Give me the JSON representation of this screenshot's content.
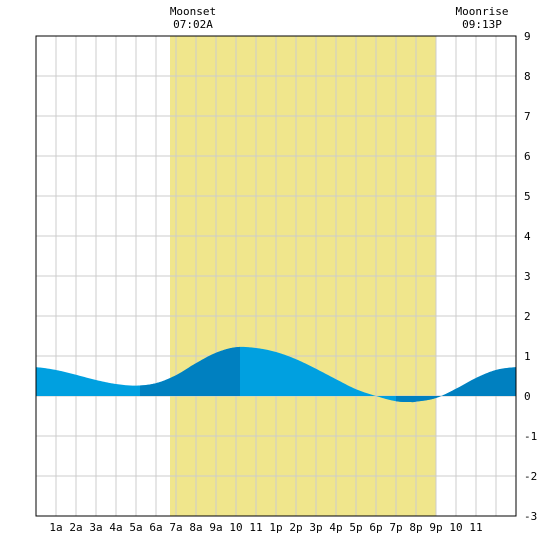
{
  "header": {
    "moonset_label": "Moonset",
    "moonset_time": "07:02A",
    "moonrise_label": "Moonrise",
    "moonrise_time": "09:13P"
  },
  "chart_data": {
    "type": "area",
    "title": "",
    "xlabel": "",
    "ylabel": "",
    "x_tick_labels": [
      "1a",
      "2a",
      "3a",
      "4a",
      "5a",
      "6a",
      "7a",
      "8a",
      "9a",
      "10",
      "11",
      "1p",
      "2p",
      "3p",
      "4p",
      "5p",
      "6p",
      "7p",
      "8p",
      "9p",
      "10",
      "11"
    ],
    "xlim": [
      0,
      24
    ],
    "ylim": [
      -3,
      9
    ],
    "y_ticks": [
      9,
      8,
      7,
      6,
      5,
      4,
      3,
      2,
      1,
      0,
      -1,
      -2,
      -3
    ],
    "daylight_band": {
      "start_hour": 6.7,
      "end_hour": 20.0
    },
    "grid": true,
    "colors": {
      "water": "#00a0e0",
      "water_dark": "#0080c0",
      "daylight": "#f0e68c",
      "grid": "#cccccc",
      "frame": "#000000"
    },
    "series": [
      {
        "x": [
          0,
          1,
          2,
          3,
          4,
          5,
          6,
          7,
          8,
          9,
          10,
          11,
          12,
          13,
          14,
          15,
          16,
          17,
          18,
          18.7,
          19,
          20,
          21,
          22,
          23,
          24
        ],
        "values": [
          0.72,
          0.65,
          0.53,
          0.4,
          0.3,
          0.26,
          0.32,
          0.52,
          0.82,
          1.08,
          1.22,
          1.2,
          1.1,
          0.92,
          0.68,
          0.42,
          0.17,
          0.0,
          -0.13,
          -0.15,
          -0.14,
          -0.05,
          0.18,
          0.45,
          0.65,
          0.72
        ]
      }
    ],
    "dark_intervals": [
      [
        5.2,
        10.2
      ],
      [
        18.0,
        24.0
      ]
    ]
  }
}
